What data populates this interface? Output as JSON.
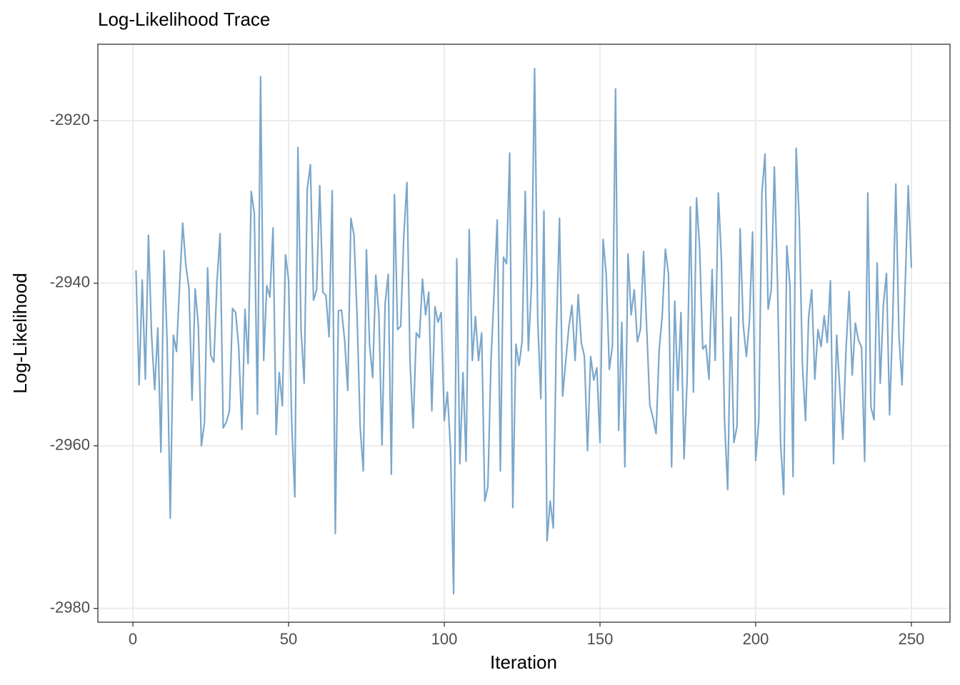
{
  "chart_data": {
    "type": "line",
    "title": "Log-Likelihood Trace",
    "x_label": "Iteration",
    "y_label": "Log-Likelihood",
    "color": "#7ba7cb",
    "grid": true,
    "x": [
      1,
      2,
      3,
      4,
      5,
      6,
      7,
      8,
      9,
      10,
      11,
      12,
      13,
      14,
      15,
      16,
      17,
      18,
      19,
      20,
      21,
      22,
      23,
      24,
      25,
      26,
      27,
      28,
      29,
      30,
      31,
      32,
      33,
      34,
      35,
      36,
      37,
      38,
      39,
      40,
      41,
      42,
      43,
      44,
      45,
      46,
      47,
      48,
      49,
      50,
      51,
      52,
      53,
      54,
      55,
      56,
      57,
      58,
      59,
      60,
      61,
      62,
      63,
      64,
      65,
      66,
      67,
      68,
      69,
      70,
      71,
      72,
      73,
      74,
      75,
      76,
      77,
      78,
      79,
      80,
      81,
      82,
      83,
      84,
      85,
      86,
      87,
      88,
      89,
      90,
      91,
      92,
      93,
      94,
      95,
      96,
      97,
      98,
      99,
      100,
      101,
      102,
      103,
      104,
      105,
      106,
      107,
      108,
      109,
      110,
      111,
      112,
      113,
      114,
      115,
      116,
      117,
      118,
      119,
      120,
      121,
      122,
      123,
      124,
      125,
      126,
      127,
      128,
      129,
      130,
      131,
      132,
      133,
      134,
      135,
      136,
      137,
      138,
      139,
      140,
      141,
      142,
      143,
      144,
      145,
      146,
      147,
      148,
      149,
      150,
      151,
      152,
      153,
      154,
      155,
      156,
      157,
      158,
      159,
      160,
      161,
      162,
      163,
      164,
      165,
      166,
      167,
      168,
      169,
      170,
      171,
      172,
      173,
      174,
      175,
      176,
      177,
      178,
      179,
      180,
      181,
      182,
      183,
      184,
      185,
      186,
      187,
      188,
      189,
      190,
      191,
      192,
      193,
      194,
      195,
      196,
      197,
      198,
      199,
      200,
      201,
      202,
      203,
      204,
      205,
      206,
      207,
      208,
      209,
      210,
      211,
      212,
      213,
      214,
      215,
      216,
      217,
      218,
      219,
      220,
      221,
      222,
      223,
      224,
      225,
      226,
      227,
      228,
      229,
      230,
      231,
      232,
      233,
      234,
      235,
      236,
      237,
      238,
      239,
      240,
      241,
      242,
      243,
      244,
      245,
      246,
      247,
      248,
      249,
      250
    ],
    "values": [
      -2938.4,
      -2952.5,
      -2939.6,
      -2951.8,
      -2934.1,
      -2946.4,
      -2953.1,
      -2945.5,
      -2960.8,
      -2936.0,
      -2947.3,
      -2968.9,
      -2946.4,
      -2948.4,
      -2940.3,
      -2932.6,
      -2937.8,
      -2940.6,
      -2954.4,
      -2940.7,
      -2945.1,
      -2960.0,
      -2957.1,
      -2938.1,
      -2948.9,
      -2949.7,
      -2939.9,
      -2933.9,
      -2957.8,
      -2957.1,
      -2955.7,
      -2943.1,
      -2943.6,
      -2948.0,
      -2958.0,
      -2943.2,
      -2949.9,
      -2928.7,
      -2931.4,
      -2956.1,
      -2914.6,
      -2949.5,
      -2940.3,
      -2941.7,
      -2933.2,
      -2958.6,
      -2951.0,
      -2955.1,
      -2936.5,
      -2939.6,
      -2957.1,
      -2966.3,
      -2923.3,
      -2945.7,
      -2952.3,
      -2928.4,
      -2925.4,
      -2942.1,
      -2940.8,
      -2928.0,
      -2941.1,
      -2941.5,
      -2946.6,
      -2928.6,
      -2970.8,
      -2943.4,
      -2943.3,
      -2947.0,
      -2953.2,
      -2932.0,
      -2934.1,
      -2944.1,
      -2957.8,
      -2963.1,
      -2935.9,
      -2947.5,
      -2951.6,
      -2939.0,
      -2943.8,
      -2959.9,
      -2942.5,
      -2938.9,
      -2963.5,
      -2929.1,
      -2945.7,
      -2945.3,
      -2934.1,
      -2927.6,
      -2949.7,
      -2957.8,
      -2946.1,
      -2946.7,
      -2939.5,
      -2943.9,
      -2941.1,
      -2955.7,
      -2942.9,
      -2944.8,
      -2943.6,
      -2956.9,
      -2953.4,
      -2960.4,
      -2978.2,
      -2937.0,
      -2962.2,
      -2951.0,
      -2961.9,
      -2933.4,
      -2949.5,
      -2944.1,
      -2949.5,
      -2946.1,
      -2966.8,
      -2965.0,
      -2949.5,
      -2941.1,
      -2932.2,
      -2963.1,
      -2936.8,
      -2937.6,
      -2924.0,
      -2967.6,
      -2947.5,
      -2950.1,
      -2947.1,
      -2928.7,
      -2948.3,
      -2940.3,
      -2913.6,
      -2944.4,
      -2954.2,
      -2931.1,
      -2971.7,
      -2966.8,
      -2970.1,
      -2946.0,
      -2932.0,
      -2953.9,
      -2949.6,
      -2945.4,
      -2942.7,
      -2949.5,
      -2941.4,
      -2947.3,
      -2949.0,
      -2960.6,
      -2949.0,
      -2951.9,
      -2950.4,
      -2959.6,
      -2934.6,
      -2938.9,
      -2950.6,
      -2947.7,
      -2916.1,
      -2958.1,
      -2944.8,
      -2962.6,
      -2936.4,
      -2943.9,
      -2940.8,
      -2947.2,
      -2945.7,
      -2936.1,
      -2945.5,
      -2955.0,
      -2956.5,
      -2958.5,
      -2948.3,
      -2943.9,
      -2935.8,
      -2938.9,
      -2962.6,
      -2942.2,
      -2953.2,
      -2943.6,
      -2961.6,
      -2951.7,
      -2930.6,
      -2953.4,
      -2929.5,
      -2935.7,
      -2948.1,
      -2947.6,
      -2951.8,
      -2938.3,
      -2949.5,
      -2928.9,
      -2937.1,
      -2956.9,
      -2965.4,
      -2944.2,
      -2959.6,
      -2957.6,
      -2933.3,
      -2945.1,
      -2949.0,
      -2944.6,
      -2933.7,
      -2961.8,
      -2956.9,
      -2928.9,
      -2924.1,
      -2943.2,
      -2940.8,
      -2925.7,
      -2939.8,
      -2959.7,
      -2966.0,
      -2935.4,
      -2940.3,
      -2963.8,
      -2923.4,
      -2932.4,
      -2949.9,
      -2956.9,
      -2944.2,
      -2940.8,
      -2951.8,
      -2945.7,
      -2947.8,
      -2944.0,
      -2947.3,
      -2939.7,
      -2962.2,
      -2946.4,
      -2953.0,
      -2959.2,
      -2948.2,
      -2941.0,
      -2951.3,
      -2944.9,
      -2947.0,
      -2947.9,
      -2961.9,
      -2928.9,
      -2955.2,
      -2956.8,
      -2937.5,
      -2952.3,
      -2942.7,
      -2938.8,
      -2956.2,
      -2944.6,
      -2927.8,
      -2946.4,
      -2952.5,
      -2940.3,
      -2928.0,
      -2938.1
    ],
    "xlim": [
      -11.25,
      262.4
    ],
    "xticks": [
      0,
      50,
      100,
      150,
      200,
      250
    ],
    "ylim": [
      -2981.7,
      -2910.6
    ],
    "yticks": [
      -2980,
      -2960,
      -2940,
      -2920
    ]
  }
}
